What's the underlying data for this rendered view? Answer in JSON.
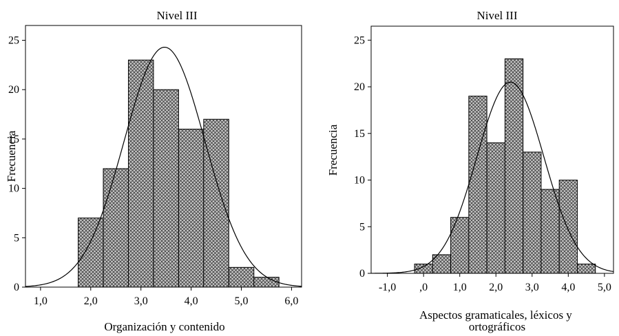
{
  "chart_data": [
    {
      "type": "bar",
      "title": "Nivel III",
      "xlabel": "Organización y contenido",
      "ylabel": "Frecuencia",
      "x_ticks": [
        {
          "value": 1,
          "label": "1,0"
        },
        {
          "value": 2,
          "label": "2,0"
        },
        {
          "value": 3,
          "label": "3,0"
        },
        {
          "value": 4,
          "label": "4,0"
        },
        {
          "value": 5,
          "label": "5,0"
        },
        {
          "value": 6,
          "label": "6,0"
        }
      ],
      "y_ticks": [
        0,
        5,
        10,
        15,
        20,
        25
      ],
      "xlim": [
        0.7,
        6.2
      ],
      "ylim": [
        0,
        26.5
      ],
      "bins": [
        {
          "x0": 1.75,
          "x1": 2.25,
          "value": 7
        },
        {
          "x0": 2.25,
          "x1": 2.75,
          "value": 12
        },
        {
          "x0": 2.75,
          "x1": 3.25,
          "value": 23
        },
        {
          "x0": 3.25,
          "x1": 3.75,
          "value": 20
        },
        {
          "x0": 3.75,
          "x1": 4.25,
          "value": 16
        },
        {
          "x0": 4.25,
          "x1": 4.75,
          "value": 17
        },
        {
          "x0": 4.75,
          "x1": 5.25,
          "value": 2
        },
        {
          "x0": 5.25,
          "x1": 5.75,
          "value": 1
        }
      ],
      "normal_curve": {
        "mean": 3.47,
        "sd": 0.808,
        "peak": 24.3
      }
    },
    {
      "type": "bar",
      "title": "Nivel III",
      "xlabel": "Aspectos gramaticales, léxicos y ortográficos",
      "ylabel": "Frecuencia",
      "x_ticks": [
        {
          "value": -1,
          "label": "-1,0"
        },
        {
          "value": 0,
          "label": ",0"
        },
        {
          "value": 1,
          "label": "1,0"
        },
        {
          "value": 2,
          "label": "2,0"
        },
        {
          "value": 3,
          "label": "3,0"
        },
        {
          "value": 4,
          "label": "4,0"
        },
        {
          "value": 5,
          "label": "5,0"
        }
      ],
      "y_ticks": [
        0,
        5,
        10,
        15,
        20,
        25
      ],
      "xlim": [
        -1.45,
        5.25
      ],
      "ylim": [
        0,
        26.5
      ],
      "bins": [
        {
          "x0": -0.25,
          "x1": 0.25,
          "value": 1
        },
        {
          "x0": 0.25,
          "x1": 0.75,
          "value": 2
        },
        {
          "x0": 0.75,
          "x1": 1.25,
          "value": 6
        },
        {
          "x0": 1.25,
          "x1": 1.75,
          "value": 19
        },
        {
          "x0": 1.75,
          "x1": 2.25,
          "value": 14
        },
        {
          "x0": 2.25,
          "x1": 2.75,
          "value": 23
        },
        {
          "x0": 2.75,
          "x1": 3.25,
          "value": 13
        },
        {
          "x0": 3.25,
          "x1": 3.75,
          "value": 9
        },
        {
          "x0": 3.75,
          "x1": 4.25,
          "value": 10
        },
        {
          "x0": 4.25,
          "x1": 4.75,
          "value": 1
        }
      ],
      "normal_curve": {
        "mean": 2.4,
        "sd": 0.93,
        "peak": 20.5
      }
    }
  ]
}
